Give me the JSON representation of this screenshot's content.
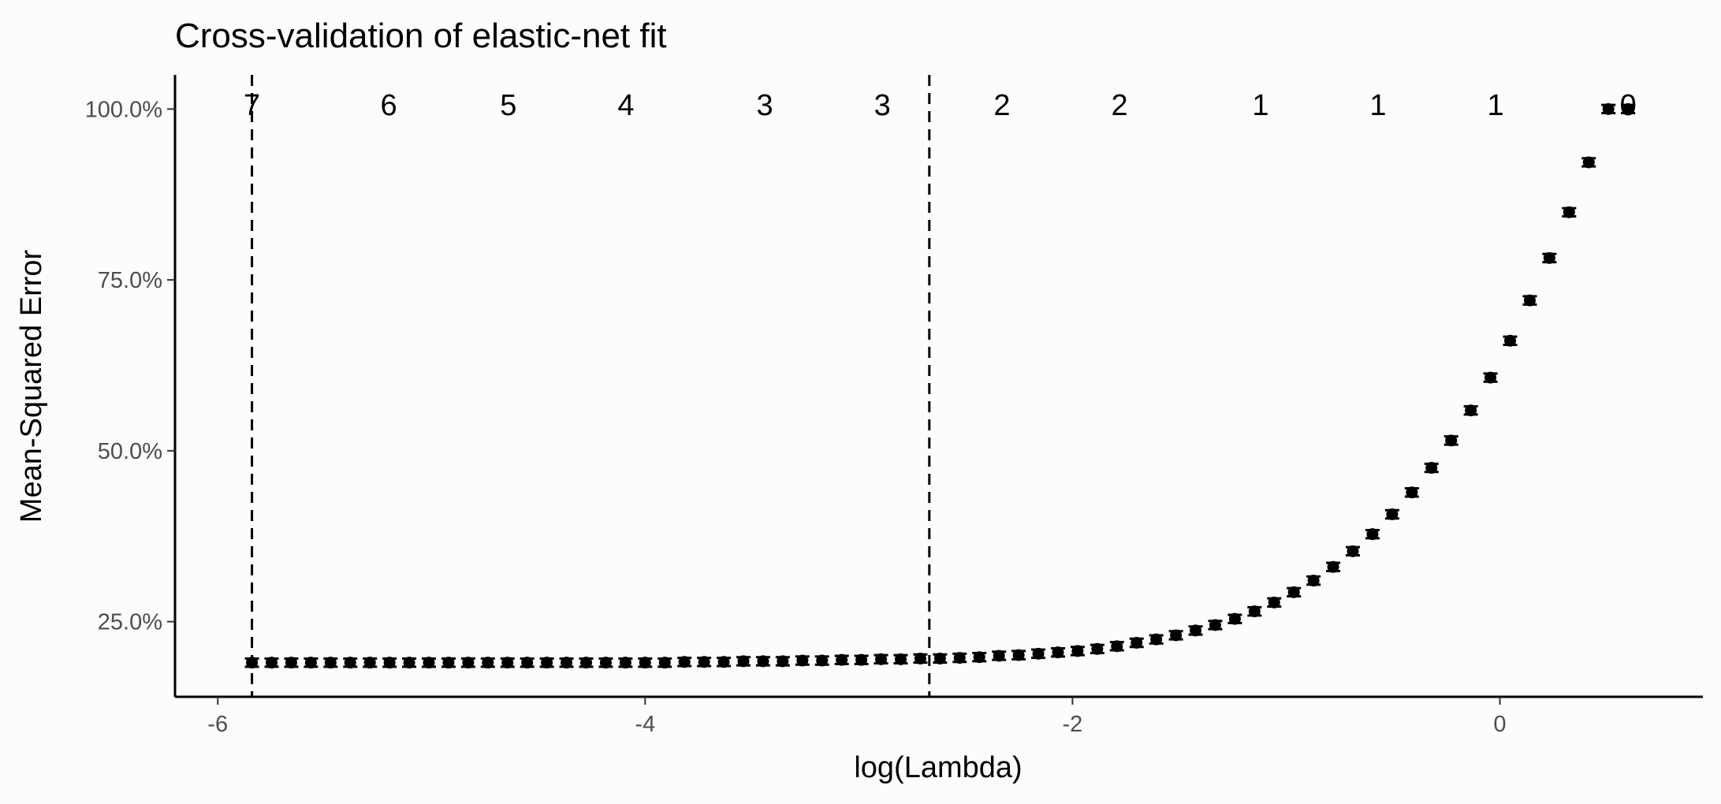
{
  "chart_data": {
    "type": "scatter",
    "title": "Cross-validation of elastic-net fit",
    "xlabel": "log(Lambda)",
    "ylabel": "Mean-Squared Error",
    "xlim": [
      -6.2,
      0.95
    ],
    "ylim": [
      0.14,
      1.05
    ],
    "x_ticks": [
      -6,
      -4,
      -2,
      0
    ],
    "x_tick_labels": [
      "-6",
      "-4",
      "-2",
      "0"
    ],
    "y_ticks": [
      0.25,
      0.5,
      0.75,
      1.0
    ],
    "y_tick_labels": [
      "25.0%",
      "50.0%",
      "75.0%",
      "100.0%"
    ],
    "vlines": [
      -5.84,
      -2.67
    ],
    "top_counts": {
      "x": [
        -5.84,
        -5.2,
        -4.64,
        -4.09,
        -3.44,
        -2.89,
        -2.33,
        -1.78,
        -1.12,
        -0.57,
        -0.02,
        0.6
      ],
      "labels": [
        "7",
        "6",
        "5",
        "4",
        "3",
        "3",
        "2",
        "2",
        "1",
        "1",
        "1",
        "0"
      ]
    },
    "series": [
      {
        "x": [
          -5.84,
          -5.748,
          -5.656,
          -5.564,
          -5.472,
          -5.38,
          -5.288,
          -5.196,
          -5.104,
          -5.012,
          -4.92,
          -4.828,
          -4.736,
          -4.644,
          -4.552,
          -4.46,
          -4.368,
          -4.276,
          -4.184,
          -4.092,
          -4.0,
          -3.908,
          -3.816,
          -3.724,
          -3.632,
          -3.54,
          -3.448,
          -3.356,
          -3.264,
          -3.172,
          -3.08,
          -2.988,
          -2.896,
          -2.804,
          -2.712,
          -2.62,
          -2.528,
          -2.436,
          -2.344,
          -2.252,
          -2.16,
          -2.068,
          -1.976,
          -1.884,
          -1.792,
          -1.7,
          -1.608,
          -1.516,
          -1.424,
          -1.332,
          -1.24,
          -1.148,
          -1.056,
          -0.964,
          -0.872,
          -0.78,
          -0.688,
          -0.596,
          -0.504,
          -0.412,
          -0.32,
          -0.228,
          -0.136,
          -0.044,
          0.048,
          0.14,
          0.232,
          0.324,
          0.416,
          0.508,
          0.6
        ],
        "y": [
          0.19,
          0.19,
          0.19,
          0.19,
          0.19,
          0.19,
          0.19,
          0.19,
          0.19,
          0.19,
          0.19,
          0.19,
          0.19,
          0.19,
          0.19,
          0.19,
          0.19,
          0.19,
          0.19,
          0.19,
          0.19,
          0.19,
          0.191,
          0.191,
          0.191,
          0.192,
          0.192,
          0.192,
          0.193,
          0.193,
          0.194,
          0.194,
          0.195,
          0.195,
          0.196,
          0.196,
          0.197,
          0.198,
          0.2,
          0.201,
          0.203,
          0.205,
          0.207,
          0.21,
          0.214,
          0.219,
          0.224,
          0.23,
          0.237,
          0.245,
          0.254,
          0.265,
          0.278,
          0.293,
          0.31,
          0.33,
          0.353,
          0.378,
          0.407,
          0.439,
          0.475,
          0.515,
          0.559,
          0.607,
          0.661,
          0.72,
          0.782,
          0.849,
          0.922,
          1.0,
          1.0
        ],
        "error": 0.006
      }
    ]
  }
}
